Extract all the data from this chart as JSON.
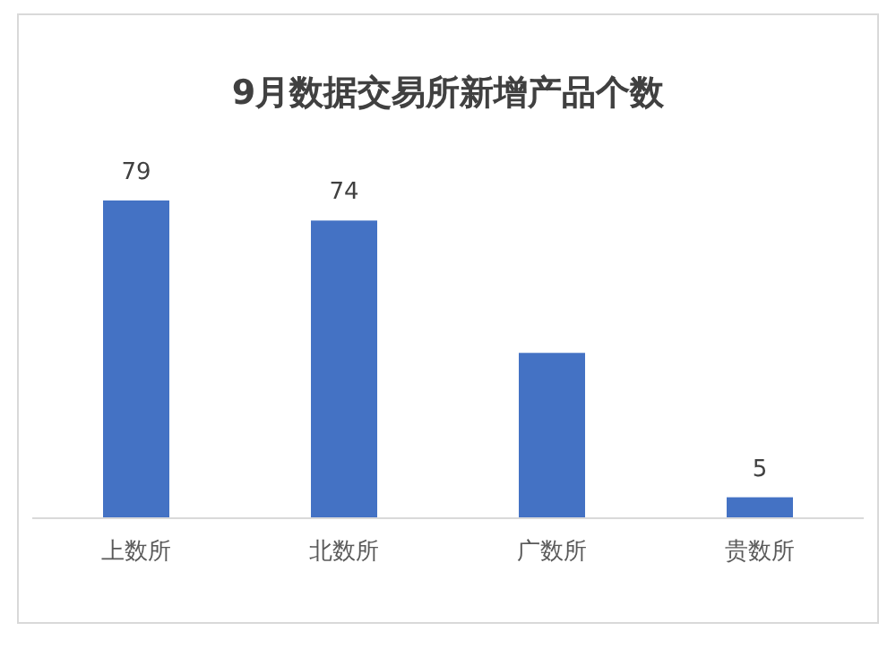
{
  "chart_data": {
    "type": "bar",
    "title": "9月数据交易所新增产品个数",
    "categories": [
      "上数所",
      "北数所",
      "广数所",
      "贵数所"
    ],
    "values": [
      79,
      74,
      41,
      5
    ],
    "value_labels": [
      "79",
      "74",
      null,
      "5"
    ],
    "color": "#4472c4"
  }
}
